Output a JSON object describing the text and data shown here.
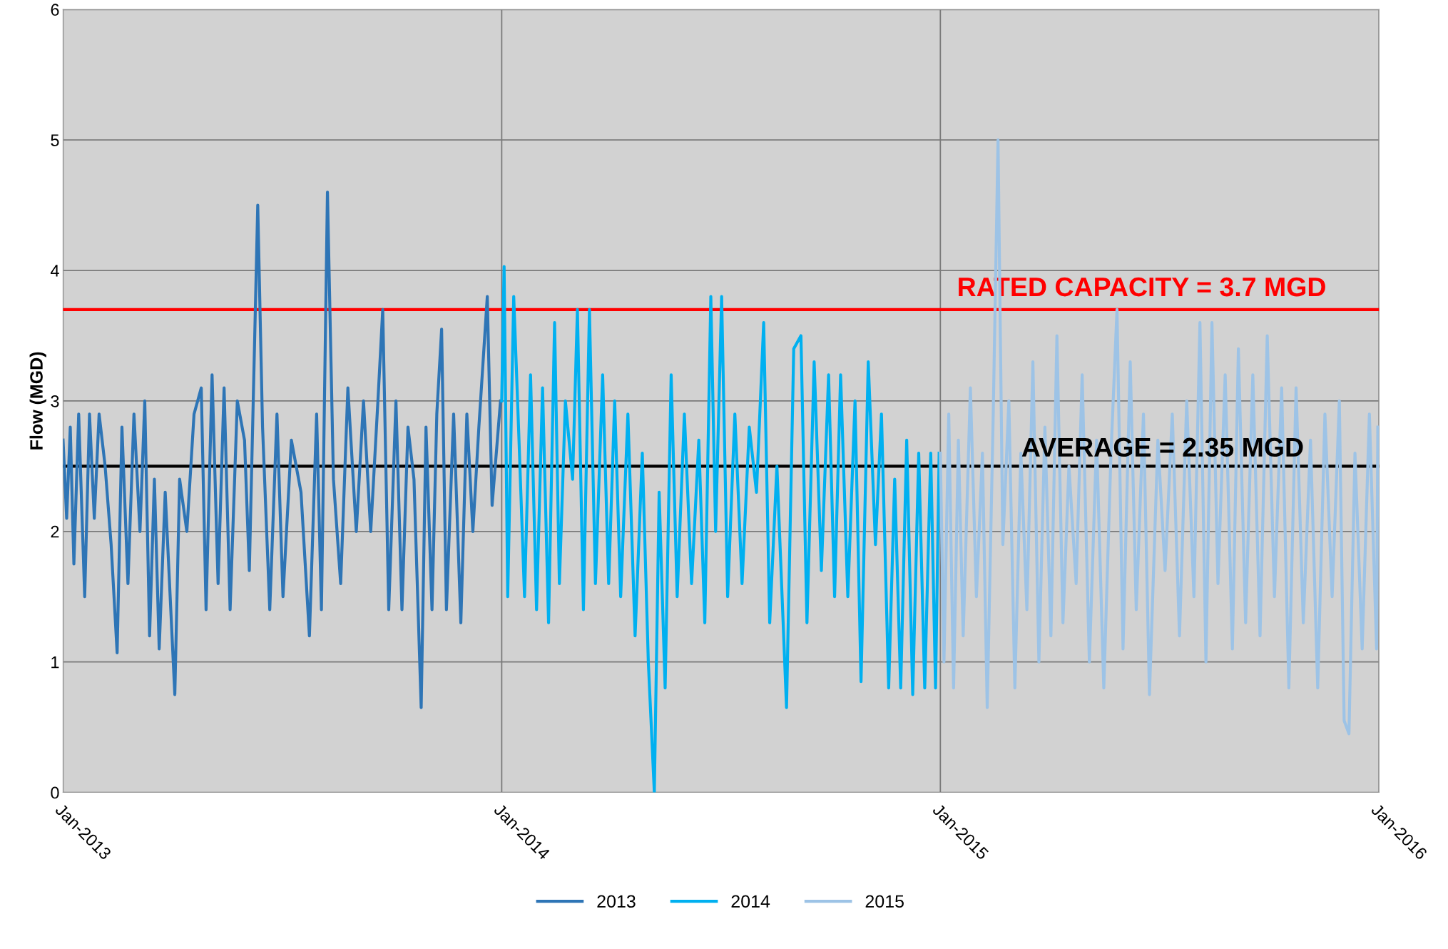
{
  "chart_data": {
    "type": "line",
    "ylabel": "Flow (MGD)",
    "ylim": [
      0,
      6
    ],
    "yticks": [
      0,
      1,
      2,
      3,
      4,
      5,
      6
    ],
    "xlim": [
      "2013-01-01",
      "2016-01-01"
    ],
    "xticks": [
      {
        "value": "2013-01-01",
        "label": "Jan-2013"
      },
      {
        "value": "2014-01-01",
        "label": "Jan-2014"
      },
      {
        "value": "2015-01-01",
        "label": "Jan-2015"
      },
      {
        "value": "2016-01-01",
        "label": "Jan-2016"
      }
    ],
    "grid": true,
    "legend": "bottom",
    "marker": "none",
    "line_style": "solid",
    "ref_lines": [
      {
        "axis": "y",
        "value": 3.7,
        "label": "RATED CAPACITY = 3.7 MGD",
        "color": "#ff0000"
      },
      {
        "axis": "y",
        "value": 2.5,
        "color": "#000000"
      }
    ],
    "annotations": [
      "AVERAGE = 2.35 MGD"
    ],
    "series": [
      {
        "name": "2013",
        "color": "#2e75b6",
        "x": [
          "2013-01-01",
          "2013-01-04",
          "2013-01-07",
          "2013-01-10",
          "2013-01-14",
          "2013-01-19",
          "2013-01-23",
          "2013-01-27",
          "2013-01-31",
          "2013-02-05",
          "2013-02-10",
          "2013-02-15",
          "2013-02-19",
          "2013-02-24",
          "2013-03-01",
          "2013-03-06",
          "2013-03-10",
          "2013-03-14",
          "2013-03-18",
          "2013-03-22",
          "2013-03-27",
          "2013-04-04",
          "2013-04-08",
          "2013-04-14",
          "2013-04-20",
          "2013-04-26",
          "2013-04-30",
          "2013-05-05",
          "2013-05-10",
          "2013-05-15",
          "2013-05-20",
          "2013-05-26",
          "2013-06-01",
          "2013-06-05",
          "2013-06-12",
          "2013-06-16",
          "2013-06-22",
          "2013-06-28",
          "2013-07-03",
          "2013-07-10",
          "2013-07-18",
          "2013-07-25",
          "2013-07-31",
          "2013-08-04",
          "2013-08-09",
          "2013-08-14",
          "2013-08-20",
          "2013-08-26",
          "2013-09-02",
          "2013-09-08",
          "2013-09-14",
          "2013-09-20",
          "2013-09-24",
          "2013-09-29",
          "2013-10-05",
          "2013-10-10",
          "2013-10-15",
          "2013-10-20",
          "2013-10-26",
          "2013-10-30",
          "2013-11-04",
          "2013-11-08",
          "2013-11-12",
          "2013-11-16",
          "2013-11-22",
          "2013-11-28",
          "2013-12-03",
          "2013-12-08",
          "2013-12-13",
          "2013-12-20",
          "2013-12-24",
          "2013-12-31"
        ],
        "values": [
          2.7,
          2.1,
          2.8,
          1.75,
          2.9,
          1.5,
          2.9,
          2.1,
          2.9,
          2.5,
          1.9,
          1.07,
          2.8,
          1.6,
          2.9,
          2.0,
          3.0,
          1.2,
          2.4,
          1.1,
          2.3,
          0.75,
          2.4,
          2.0,
          2.9,
          3.1,
          1.4,
          3.2,
          1.6,
          3.1,
          1.4,
          3.0,
          2.7,
          1.7,
          4.5,
          2.8,
          1.4,
          2.9,
          1.5,
          2.7,
          2.3,
          1.2,
          2.9,
          1.4,
          4.6,
          2.4,
          1.6,
          3.1,
          2.0,
          3.0,
          2.0,
          3.0,
          3.7,
          1.4,
          3.0,
          1.4,
          2.8,
          2.4,
          0.65,
          2.8,
          1.4,
          2.9,
          3.55,
          1.4,
          2.9,
          1.3,
          2.9,
          2.0,
          2.8,
          3.8,
          2.2,
          3.0
        ]
      },
      {
        "name": "2014",
        "color": "#00b0f0",
        "x": [
          "2014-01-01",
          "2014-01-03",
          "2014-01-06",
          "2014-01-11",
          "2014-01-15",
          "2014-01-20",
          "2014-01-25",
          "2014-01-30",
          "2014-02-04",
          "2014-02-09",
          "2014-02-14",
          "2014-02-18",
          "2014-02-23",
          "2014-03-01",
          "2014-03-05",
          "2014-03-10",
          "2014-03-15",
          "2014-03-20",
          "2014-03-26",
          "2014-03-31",
          "2014-04-05",
          "2014-04-10",
          "2014-04-16",
          "2014-04-22",
          "2014-04-28",
          "2014-05-03",
          "2014-05-08",
          "2014-05-12",
          "2014-05-17",
          "2014-05-22",
          "2014-05-27",
          "2014-06-02",
          "2014-06-08",
          "2014-06-14",
          "2014-06-19",
          "2014-06-24",
          "2014-06-28",
          "2014-07-03",
          "2014-07-08",
          "2014-07-14",
          "2014-07-20",
          "2014-07-26",
          "2014-08-01",
          "2014-08-07",
          "2014-08-12",
          "2014-08-18",
          "2014-08-26",
          "2014-09-01",
          "2014-09-07",
          "2014-09-12",
          "2014-09-18",
          "2014-09-24",
          "2014-09-30",
          "2014-10-05",
          "2014-10-10",
          "2014-10-16",
          "2014-10-22",
          "2014-10-27",
          "2014-11-02",
          "2014-11-08",
          "2014-11-13",
          "2014-11-19",
          "2014-11-24",
          "2014-11-29",
          "2014-12-04",
          "2014-12-09",
          "2014-12-14",
          "2014-12-19",
          "2014-12-24",
          "2014-12-28",
          "2014-12-31"
        ],
        "values": [
          3.0,
          4.03,
          1.5,
          3.8,
          2.8,
          1.5,
          3.2,
          1.4,
          3.1,
          1.3,
          3.6,
          1.6,
          3.0,
          2.4,
          3.7,
          1.4,
          3.7,
          1.6,
          3.2,
          1.6,
          3.0,
          1.5,
          2.9,
          1.2,
          2.6,
          1.0,
          0.0,
          2.3,
          0.8,
          3.2,
          1.5,
          2.9,
          1.6,
          2.7,
          1.3,
          3.8,
          2.0,
          3.8,
          1.5,
          2.9,
          1.6,
          2.8,
          2.3,
          3.6,
          1.3,
          2.5,
          0.65,
          3.4,
          3.5,
          1.3,
          3.3,
          1.7,
          3.2,
          1.5,
          3.2,
          1.5,
          3.0,
          0.85,
          3.3,
          1.9,
          2.9,
          0.8,
          2.4,
          0.8,
          2.7,
          0.75,
          2.6,
          0.8,
          2.6,
          0.8,
          2.6
        ]
      },
      {
        "name": "2015",
        "color": "#9dc3e6",
        "x": [
          "2015-01-01",
          "2015-01-04",
          "2015-01-08",
          "2015-01-12",
          "2015-01-16",
          "2015-01-20",
          "2015-01-26",
          "2015-01-31",
          "2015-02-05",
          "2015-02-09",
          "2015-02-14",
          "2015-02-18",
          "2015-02-22",
          "2015-02-27",
          "2015-03-04",
          "2015-03-09",
          "2015-03-14",
          "2015-03-19",
          "2015-03-24",
          "2015-03-29",
          "2015-04-03",
          "2015-04-08",
          "2015-04-13",
          "2015-04-18",
          "2015-04-24",
          "2015-04-29",
          "2015-05-05",
          "2015-05-11",
          "2015-05-17",
          "2015-05-23",
          "2015-05-28",
          "2015-06-02",
          "2015-06-08",
          "2015-06-13",
          "2015-06-19",
          "2015-06-24",
          "2015-07-01",
          "2015-07-07",
          "2015-07-13",
          "2015-07-19",
          "2015-07-25",
          "2015-07-31",
          "2015-08-05",
          "2015-08-10",
          "2015-08-15",
          "2015-08-20",
          "2015-08-26",
          "2015-09-01",
          "2015-09-06",
          "2015-09-12",
          "2015-09-18",
          "2015-09-24",
          "2015-09-30",
          "2015-10-06",
          "2015-10-12",
          "2015-10-18",
          "2015-10-24",
          "2015-10-30",
          "2015-11-05",
          "2015-11-11",
          "2015-11-17",
          "2015-11-23",
          "2015-11-29",
          "2015-12-03",
          "2015-12-07",
          "2015-12-12",
          "2015-12-18",
          "2015-12-24",
          "2015-12-30",
          "2015-12-31"
        ],
        "values": [
          2.6,
          1.0,
          2.9,
          0.8,
          2.7,
          1.2,
          3.1,
          1.5,
          2.6,
          0.65,
          2.9,
          5.0,
          1.9,
          3.0,
          0.8,
          2.6,
          1.4,
          3.3,
          1.0,
          2.8,
          1.2,
          3.5,
          1.3,
          2.5,
          1.6,
          3.2,
          1.0,
          2.7,
          0.8,
          2.6,
          3.7,
          1.1,
          3.3,
          1.4,
          2.9,
          0.75,
          2.7,
          1.7,
          2.9,
          1.2,
          3.0,
          1.5,
          3.6,
          1.0,
          3.6,
          1.6,
          3.2,
          1.1,
          3.4,
          1.3,
          3.2,
          1.2,
          3.5,
          1.5,
          3.1,
          0.8,
          3.1,
          1.3,
          2.7,
          0.8,
          2.9,
          1.5,
          3.0,
          0.55,
          0.45,
          2.6,
          1.1,
          2.9,
          1.1,
          2.8
        ]
      }
    ]
  }
}
